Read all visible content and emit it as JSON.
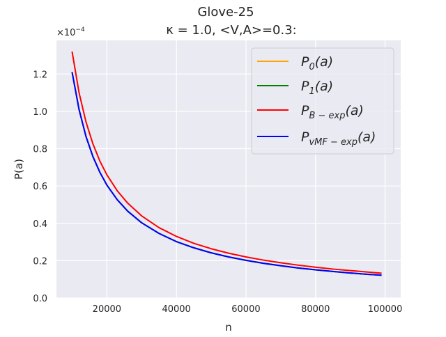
{
  "chart_data": {
    "type": "line",
    "title_line1": "Glove-25",
    "title_line2": "κ = 1.0, <V,A>=0.3:",
    "xlabel": "n",
    "ylabel": "P(a)",
    "y_multiplier": "×10",
    "y_multiplier_exp": "−4",
    "xlim": [
      5500,
      104500
    ],
    "ylim": [
      0.0,
      1.38
    ],
    "x_ticks": [
      20000,
      40000,
      60000,
      80000,
      100000
    ],
    "x_tick_labels": [
      "20000",
      "40000",
      "60000",
      "80000",
      "100000"
    ],
    "y_ticks": [
      0.0,
      0.2,
      0.4,
      0.6,
      0.8,
      1.0,
      1.2
    ],
    "y_tick_labels": [
      "0.0",
      "0.2",
      "0.4",
      "0.6",
      "0.8",
      "1.0",
      "1.2"
    ],
    "grid": true,
    "legend_position": "top-right",
    "series": [
      {
        "name": "P_0(a)",
        "label_main": "P",
        "label_sub": "0",
        "label_tail": "(a)",
        "color": "#ffa500",
        "x": [
          10000,
          12000,
          14000,
          16000,
          18000,
          20000,
          23000,
          26000,
          30000,
          35000,
          40000,
          45000,
          50000,
          55000,
          60000,
          65000,
          70000,
          75000,
          80000,
          85000,
          90000,
          95000,
          99000
        ],
        "y": [
          1.21,
          1.01,
          0.865,
          0.757,
          0.673,
          0.605,
          0.526,
          0.465,
          0.403,
          0.346,
          0.302,
          0.269,
          0.242,
          0.22,
          0.202,
          0.186,
          0.173,
          0.161,
          0.151,
          0.142,
          0.134,
          0.127,
          0.122
        ]
      },
      {
        "name": "P_1(a)",
        "label_main": "P",
        "label_sub": "1",
        "label_tail": "(a)",
        "color": "#008000",
        "x": [
          10000,
          12000,
          14000,
          16000,
          18000,
          20000,
          23000,
          26000,
          30000,
          35000,
          40000,
          45000,
          50000,
          55000,
          60000,
          65000,
          70000,
          75000,
          80000,
          85000,
          90000,
          95000,
          99000
        ],
        "y": [
          1.21,
          1.01,
          0.865,
          0.757,
          0.673,
          0.605,
          0.526,
          0.465,
          0.403,
          0.346,
          0.302,
          0.269,
          0.242,
          0.22,
          0.202,
          0.186,
          0.173,
          0.161,
          0.151,
          0.142,
          0.134,
          0.127,
          0.122
        ]
      },
      {
        "name": "P_{B-exp}(a)",
        "label_main": "P",
        "label_sub": "B − exp",
        "label_tail": "(a)",
        "color": "#ff0000",
        "x": [
          10000,
          12000,
          14000,
          16000,
          18000,
          20000,
          23000,
          26000,
          30000,
          35000,
          40000,
          45000,
          50000,
          55000,
          60000,
          65000,
          70000,
          75000,
          80000,
          85000,
          90000,
          95000,
          99000
        ],
        "y": [
          1.32,
          1.1,
          0.943,
          0.825,
          0.733,
          0.66,
          0.574,
          0.508,
          0.44,
          0.377,
          0.33,
          0.293,
          0.264,
          0.24,
          0.22,
          0.203,
          0.189,
          0.176,
          0.165,
          0.155,
          0.147,
          0.139,
          0.133
        ]
      },
      {
        "name": "P_{vMF-exp}(a)",
        "label_main": "P",
        "label_sub": "vMF − exp",
        "label_tail": "(a)",
        "color": "#0000ff",
        "x": [
          10000,
          12000,
          14000,
          16000,
          18000,
          20000,
          23000,
          26000,
          30000,
          35000,
          40000,
          45000,
          50000,
          55000,
          60000,
          65000,
          70000,
          75000,
          80000,
          85000,
          90000,
          95000,
          99000
        ],
        "y": [
          1.21,
          1.01,
          0.865,
          0.757,
          0.673,
          0.605,
          0.526,
          0.465,
          0.403,
          0.346,
          0.302,
          0.269,
          0.242,
          0.22,
          0.202,
          0.186,
          0.173,
          0.161,
          0.151,
          0.142,
          0.134,
          0.127,
          0.122
        ]
      }
    ]
  }
}
